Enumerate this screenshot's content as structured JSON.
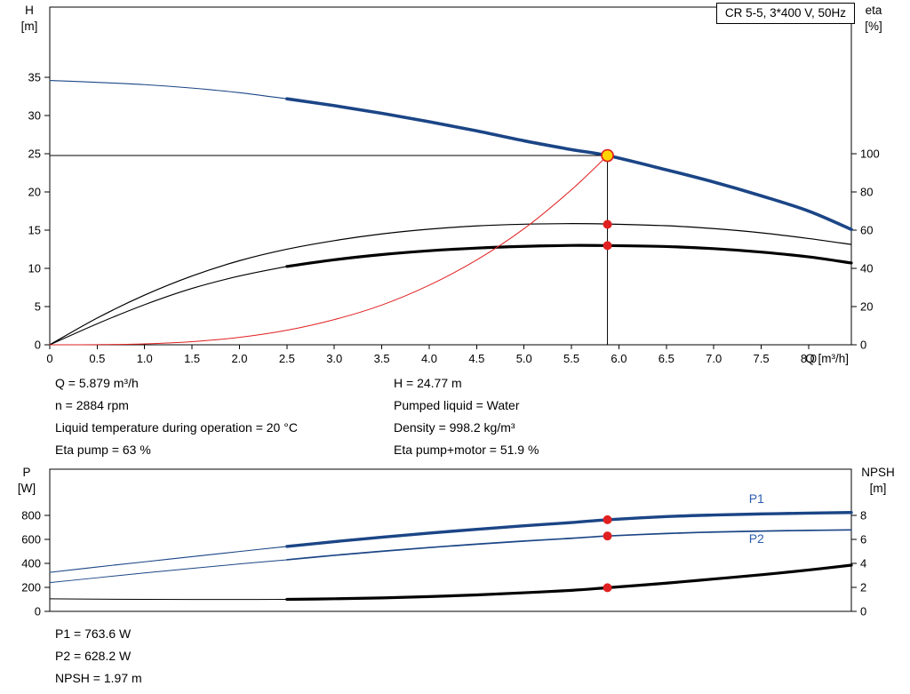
{
  "header_box": {
    "label": "CR 5-5, 3*400 V, 50Hz"
  },
  "info_panel": {
    "left": [
      "Q = 5.879 m³/h",
      "n = 2884 rpm",
      "Liquid temperature during operation = 20 °C",
      "Eta pump = 63 %"
    ],
    "right": [
      "H = 24.77 m",
      "Pumped liquid = Water",
      "Density = 998.2 kg/m³",
      "Eta pump+motor = 51.9 %"
    ]
  },
  "power_panel": {
    "lines": [
      "P1 = 763.6 W",
      "P2 = 628.2 W",
      "NPSH = 1.97 m"
    ]
  },
  "colors": {
    "curve_blue": "#1b4586",
    "label_blue": "#2a5db0",
    "red": "#e02020",
    "duty_yellow": "#ffd400",
    "black": "#000000"
  },
  "chart_data": [
    {
      "type": "line",
      "title": "CR 5-5, 3*400 V, 50Hz",
      "xlabel": "Q [m³/h]",
      "xlim": [
        0,
        8.45
      ],
      "x_ticks": [
        0,
        0.5,
        1,
        1.5,
        2,
        2.5,
        3,
        3.5,
        4,
        4.5,
        5,
        5.5,
        6,
        6.5,
        7,
        7.5,
        8
      ],
      "x_tick_labels": [
        "0",
        "0.5",
        "1.0",
        "1.5",
        "2.0",
        "2.5",
        "3.0",
        "3.5",
        "4.0",
        "4.5",
        "5.0",
        "5.5",
        "6.0",
        "6.5",
        "7.0",
        "7.5",
        "8.0"
      ],
      "left_axis": {
        "header": [
          "H",
          "[m]"
        ],
        "ticks": [
          0,
          5,
          10,
          15,
          20,
          25,
          30,
          35
        ],
        "lim": [
          0,
          44.2
        ]
      },
      "right_axis": {
        "header": [
          "eta",
          "[%]"
        ],
        "ticks": [
          0,
          20,
          40,
          60,
          80,
          100
        ],
        "lim": [
          0,
          176.7
        ]
      },
      "series": [
        {
          "name": "head-curve-lead",
          "axis": "left",
          "color": "#1b4586",
          "width": 1.1,
          "points": [
            [
              0,
              34.6
            ],
            [
              0.5,
              34.35
            ],
            [
              1,
              34.05
            ],
            [
              1.5,
              33.6
            ],
            [
              2,
              33.0
            ],
            [
              2.5,
              32.2
            ]
          ]
        },
        {
          "name": "head-curve",
          "axis": "left",
          "color": "#1b4586",
          "width": 3.6,
          "points": [
            [
              2.5,
              32.2
            ],
            [
              3,
              31.3
            ],
            [
              3.5,
              30.3
            ],
            [
              4,
              29.2
            ],
            [
              4.5,
              28.0
            ],
            [
              5,
              26.7
            ],
            [
              5.5,
              25.55
            ],
            [
              5.879,
              24.77
            ],
            [
              6.5,
              22.9
            ],
            [
              7,
              21.3
            ],
            [
              7.5,
              19.5
            ],
            [
              8,
              17.5
            ],
            [
              8.45,
              15.1
            ]
          ]
        },
        {
          "name": "eta-pump-curve",
          "axis": "right",
          "color": "#000000",
          "width": 1.2,
          "points": [
            [
              0,
              0
            ],
            [
              0.5,
              14
            ],
            [
              1,
              26
            ],
            [
              1.5,
              36
            ],
            [
              2,
              44
            ],
            [
              2.5,
              50
            ],
            [
              3,
              54.5
            ],
            [
              3.5,
              58
            ],
            [
              4,
              60.5
            ],
            [
              4.5,
              62.2
            ],
            [
              5,
              63.1
            ],
            [
              5.5,
              63.4
            ],
            [
              5.879,
              63.2
            ],
            [
              6.5,
              62.3
            ],
            [
              7,
              60.8
            ],
            [
              7.5,
              58.6
            ],
            [
              8,
              55.6
            ],
            [
              8.45,
              52.5
            ]
          ]
        },
        {
          "name": "eta-pump-motor-lead",
          "axis": "right",
          "color": "#000000",
          "width": 1.1,
          "points": [
            [
              0,
              0
            ],
            [
              0.5,
              11
            ],
            [
              1,
              21
            ],
            [
              1.5,
              29.5
            ],
            [
              2,
              36
            ],
            [
              2.5,
              41
            ]
          ]
        },
        {
          "name": "eta-pump-motor-curve",
          "axis": "right",
          "color": "#000000",
          "width": 3.2,
          "points": [
            [
              2.5,
              41
            ],
            [
              3,
              44.5
            ],
            [
              3.5,
              47.2
            ],
            [
              4,
              49.2
            ],
            [
              4.5,
              50.6
            ],
            [
              5,
              51.5
            ],
            [
              5.5,
              52.0
            ],
            [
              5.879,
              51.9
            ],
            [
              6.5,
              51.4
            ],
            [
              7,
              50.3
            ],
            [
              7.5,
              48.5
            ],
            [
              8,
              46.0
            ],
            [
              8.45,
              42.8
            ]
          ]
        },
        {
          "name": "system-curve",
          "axis": "left",
          "color": "#e02020",
          "width": 1,
          "points": [
            [
              0,
              0
            ],
            [
              0.5,
              0.02
            ],
            [
              1,
              0.12
            ],
            [
              1.5,
              0.41
            ],
            [
              2,
              0.97
            ],
            [
              2.5,
              1.9
            ],
            [
              3,
              3.3
            ],
            [
              3.5,
              5.2
            ],
            [
              4,
              7.8
            ],
            [
              4.5,
              11.1
            ],
            [
              5,
              15.2
            ],
            [
              5.5,
              20.3
            ],
            [
              5.879,
              24.77
            ]
          ]
        },
        {
          "name": "duty-h-line",
          "axis": "left",
          "color": "#000000",
          "width": 1,
          "straight": true,
          "points": [
            [
              0,
              24.77
            ],
            [
              5.879,
              24.77
            ]
          ]
        },
        {
          "name": "duty-q-line",
          "axis": "left",
          "color": "#000000",
          "width": 1,
          "straight": true,
          "points": [
            [
              5.879,
              0
            ],
            [
              5.879,
              24.77
            ]
          ]
        }
      ],
      "markers": [
        {
          "name": "duty-point",
          "x": 5.879,
          "y": 24.77,
          "axis": "left",
          "r": 6.5,
          "fill": "#ffd400",
          "stroke": "#e02020",
          "stroke_width": 1.7
        },
        {
          "name": "eta-pump-point",
          "x": 5.879,
          "y": 63,
          "axis": "right",
          "r": 5,
          "fill": "#e02020"
        },
        {
          "name": "eta-pump-motor-point",
          "x": 5.879,
          "y": 51.9,
          "axis": "right",
          "r": 5,
          "fill": "#e02020"
        }
      ]
    },
    {
      "type": "line",
      "xlim": [
        0,
        8.45
      ],
      "left_axis": {
        "header": [
          "P",
          "[W]"
        ],
        "ticks": [
          0,
          200,
          400,
          600,
          800
        ],
        "lim": [
          0,
          1185
        ]
      },
      "right_axis": {
        "header": [
          "NPSH",
          "[m]"
        ],
        "ticks": [
          0,
          2,
          4,
          6,
          8
        ],
        "lim": [
          0,
          11.85
        ]
      },
      "series": [
        {
          "name": "p1-curve-lead",
          "axis": "left",
          "color": "#1b4586",
          "width": 1.1,
          "points": [
            [
              0,
              325
            ],
            [
              0.5,
              370
            ],
            [
              1,
              413
            ],
            [
              1.5,
              456
            ],
            [
              2,
              499
            ],
            [
              2.5,
              541
            ]
          ]
        },
        {
          "name": "p1-curve",
          "axis": "left",
          "color": "#1b4586",
          "width": 3.4,
          "points": [
            [
              2.5,
              541
            ],
            [
              3,
              581
            ],
            [
              3.5,
              618
            ],
            [
              4,
              652
            ],
            [
              4.5,
              684
            ],
            [
              5,
              713
            ],
            [
              5.5,
              740
            ],
            [
              5.879,
              763.6
            ],
            [
              6.5,
              790
            ],
            [
              7,
              803
            ],
            [
              7.5,
              812
            ],
            [
              8,
              819
            ],
            [
              8.45,
              824
            ]
          ]
        },
        {
          "name": "p2-curve-lead",
          "axis": "left",
          "color": "#1b4586",
          "width": 1,
          "points": [
            [
              0,
              240
            ],
            [
              0.5,
              280
            ],
            [
              1,
              320
            ],
            [
              1.5,
              358
            ],
            [
              2,
              395
            ],
            [
              2.5,
              430
            ]
          ]
        },
        {
          "name": "p2-curve",
          "axis": "left",
          "color": "#1b4586",
          "width": 1.7,
          "points": [
            [
              2.5,
              430
            ],
            [
              3,
              467
            ],
            [
              3.5,
              501
            ],
            [
              4,
              532
            ],
            [
              4.5,
              560
            ],
            [
              5,
              586
            ],
            [
              5.5,
              609
            ],
            [
              5.879,
              628.2
            ],
            [
              6.5,
              649
            ],
            [
              7,
              661
            ],
            [
              7.5,
              669
            ],
            [
              8,
              675
            ],
            [
              8.45,
              679
            ]
          ]
        },
        {
          "name": "npsh-curve-lead",
          "axis": "right",
          "color": "#000000",
          "width": 1,
          "points": [
            [
              0,
              1.05
            ],
            [
              0.5,
              1.02
            ],
            [
              1,
              1.0
            ],
            [
              1.5,
              0.99
            ],
            [
              2,
              0.99
            ],
            [
              2.5,
              1.0
            ]
          ]
        },
        {
          "name": "npsh-curve",
          "axis": "right",
          "color": "#000000",
          "width": 3.2,
          "points": [
            [
              2.5,
              1.0
            ],
            [
              3,
              1.05
            ],
            [
              3.5,
              1.12
            ],
            [
              4,
              1.23
            ],
            [
              4.5,
              1.37
            ],
            [
              5,
              1.55
            ],
            [
              5.5,
              1.75
            ],
            [
              5.879,
              1.97
            ],
            [
              6.5,
              2.35
            ],
            [
              7,
              2.7
            ],
            [
              7.5,
              3.05
            ],
            [
              8,
              3.45
            ],
            [
              8.45,
              3.85
            ]
          ]
        }
      ],
      "markers": [
        {
          "name": "p1-point",
          "x": 5.879,
          "y": 763.6,
          "axis": "left",
          "r": 5,
          "fill": "#e02020"
        },
        {
          "name": "p2-point",
          "x": 5.879,
          "y": 628.2,
          "axis": "left",
          "r": 5,
          "fill": "#e02020"
        },
        {
          "name": "npsh-point",
          "x": 5.879,
          "y": 1.97,
          "axis": "right",
          "r": 5,
          "fill": "#e02020"
        }
      ],
      "series_labels": [
        {
          "text": "P1",
          "x": 7.45,
          "y": 905,
          "axis": "left",
          "color": "#2a5db0"
        },
        {
          "text": "P2",
          "x": 7.45,
          "y": 572,
          "axis": "left",
          "color": "#2a5db0"
        }
      ]
    }
  ]
}
